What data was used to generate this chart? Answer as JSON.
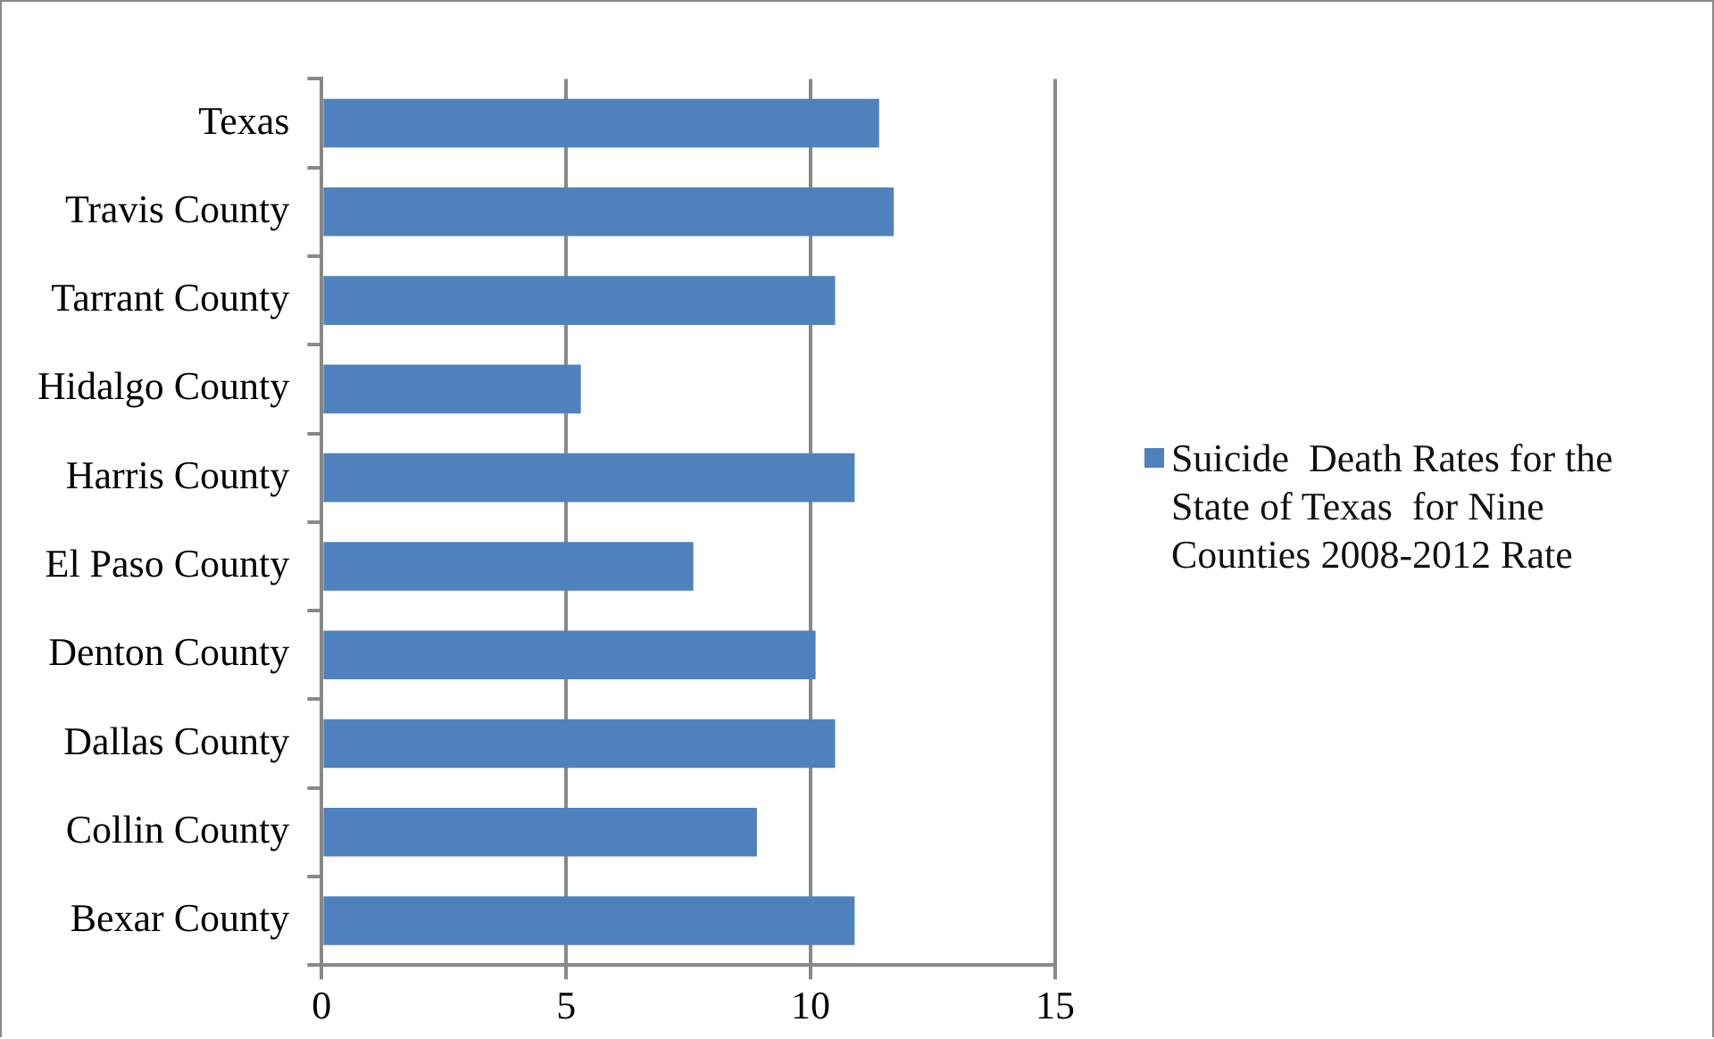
{
  "chart_data": {
    "type": "bar",
    "orientation": "horizontal",
    "categories": [
      "Texas",
      "Travis County",
      "Tarrant County",
      "Hidalgo County",
      "Harris County",
      "El Paso County",
      "Denton County",
      "Dallas County",
      "Collin County",
      "Bexar County"
    ],
    "series": [
      {
        "name": "Suicide  Death Rates for the State of Texas  for Nine Counties 2008-2012 Rate",
        "color": "#4f81bd",
        "values": [
          11.4,
          11.7,
          10.5,
          5.3,
          10.9,
          7.6,
          10.1,
          10.5,
          8.9,
          10.9
        ]
      }
    ],
    "xlim": [
      0,
      15
    ],
    "xticks": [
      0,
      5,
      10,
      15
    ],
    "grid": "x",
    "legend": "right"
  }
}
